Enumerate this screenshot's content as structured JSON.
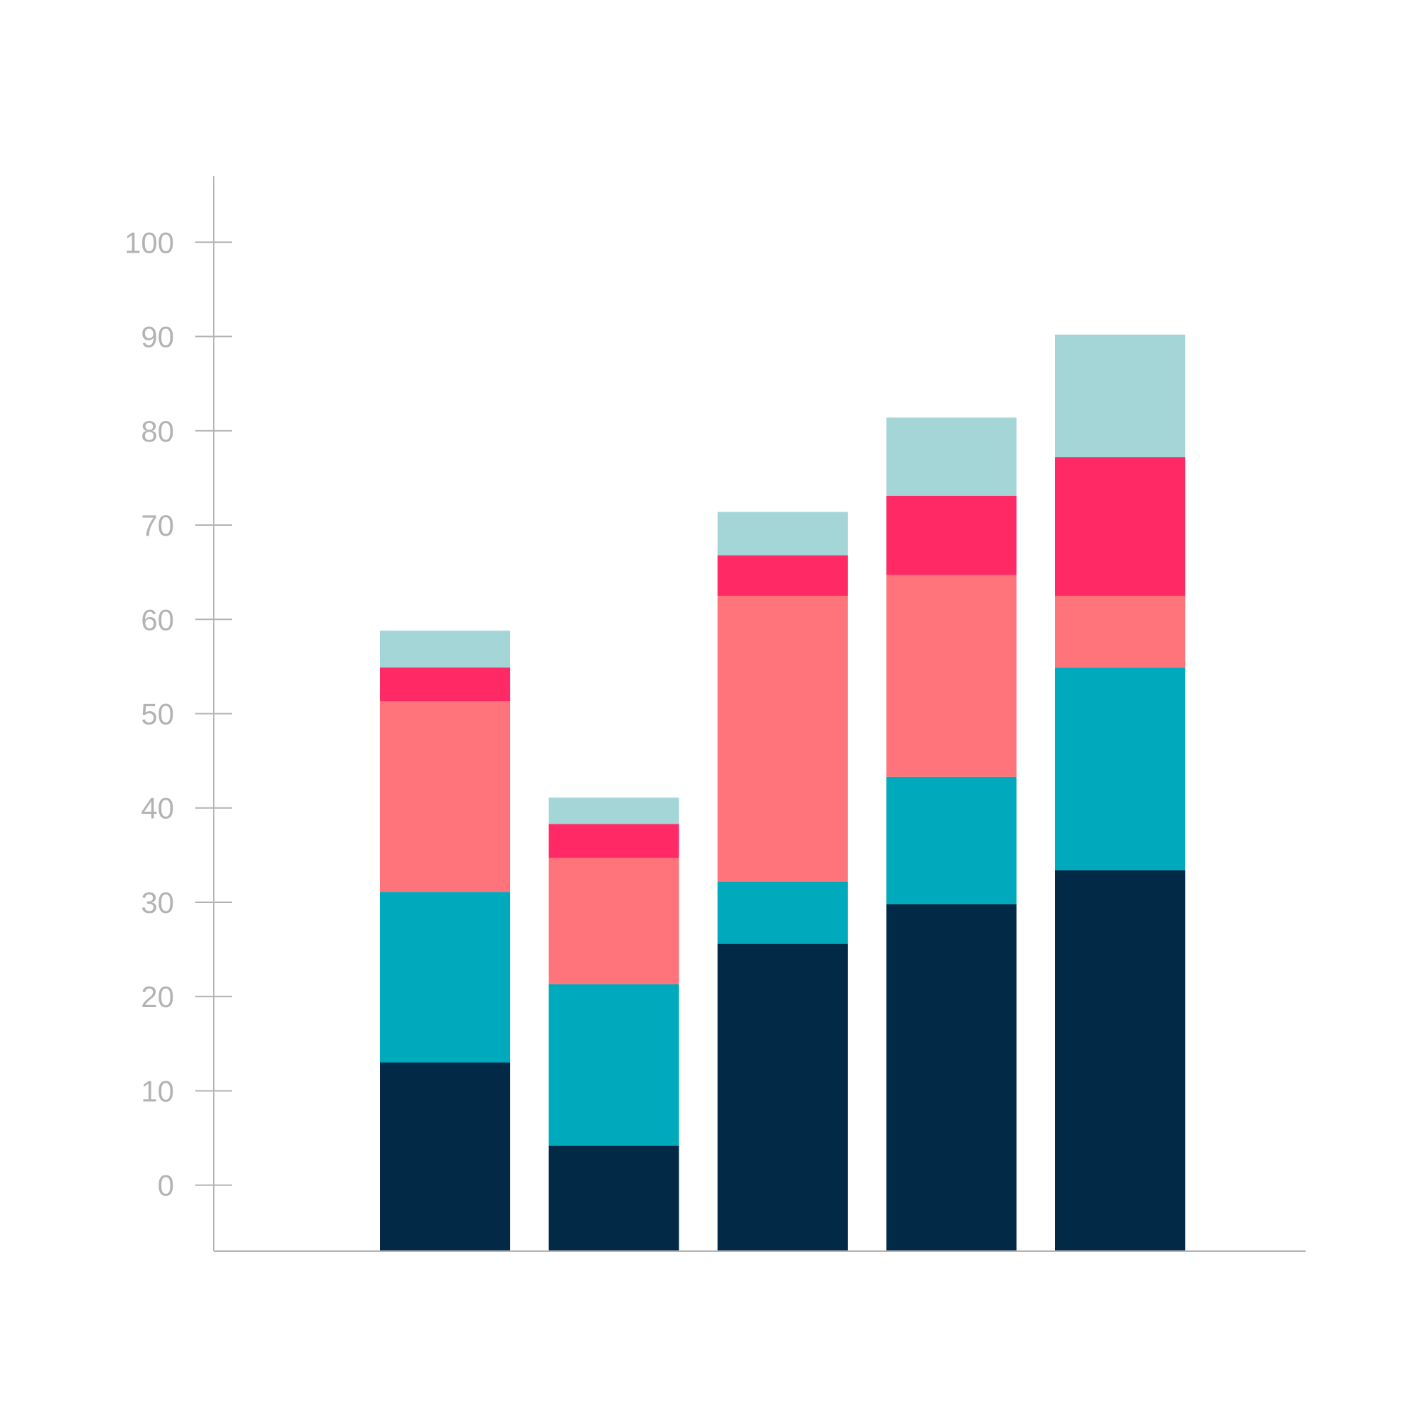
{
  "chart_data": {
    "type": "bar",
    "stacked": true,
    "title": "",
    "xlabel": "",
    "ylabel": "",
    "ylim": [
      -7,
      107
    ],
    "yticks": [
      0,
      10,
      20,
      30,
      40,
      50,
      60,
      70,
      80,
      90,
      100
    ],
    "grid": false,
    "categories": [
      "",
      "",
      "",
      "",
      ""
    ],
    "series": [
      {
        "color": "#022a47",
        "values": [
          20,
          11.2,
          32.6,
          36.8,
          40.4
        ]
      },
      {
        "color": "#00aabd",
        "values": [
          18.1,
          17.1,
          6.6,
          13.5,
          21.5
        ]
      },
      {
        "color": "#ff737a",
        "values": [
          20.2,
          13.4,
          30.3,
          21.4,
          7.6
        ]
      },
      {
        "color": "#ff2966",
        "values": [
          3.6,
          3.6,
          4.3,
          8.4,
          14.7
        ]
      },
      {
        "color": "#a4d6d8",
        "values": [
          3.9,
          2.8,
          4.6,
          8.3,
          13
        ]
      }
    ]
  }
}
